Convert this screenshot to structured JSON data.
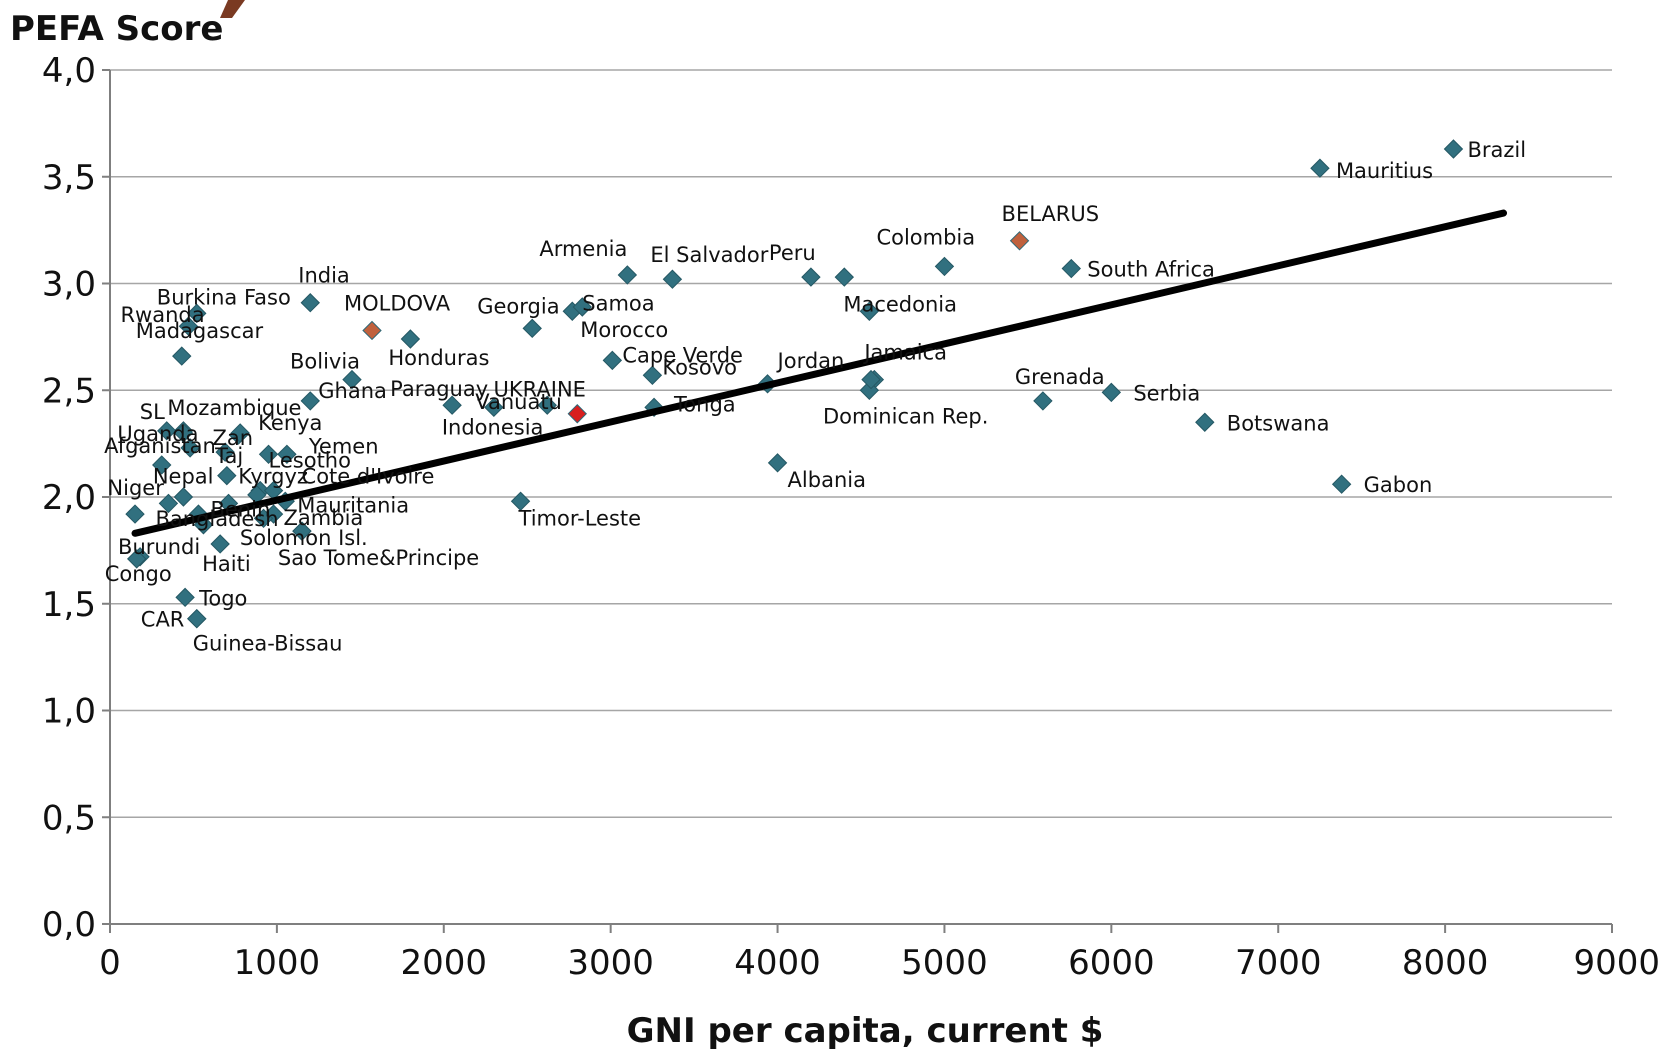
{
  "chart_data": {
    "type": "scatter",
    "ylabel": "PEFA Score",
    "xlabel": "GNI per capita, current $",
    "xlim": [
      0,
      9000
    ],
    "ylim": [
      0,
      4
    ],
    "x_ticks": [
      0,
      1000,
      2000,
      3000,
      4000,
      5000,
      6000,
      7000,
      8000,
      9000
    ],
    "x_tick_labels": [
      "0",
      "1000",
      "2000",
      "3000",
      "4000",
      "5000",
      "6000",
      "7000",
      "8000",
      "9000"
    ],
    "y_ticks": [
      0,
      0.5,
      1,
      1.5,
      2,
      2.5,
      3,
      3.5,
      4
    ],
    "y_tick_labels": [
      "0,0",
      "0,5",
      "1,0",
      "1,5",
      "2,0",
      "2,5",
      "3,0",
      "3,5",
      "4,0"
    ],
    "grid": true,
    "colors": {
      "point": "#31707f",
      "highlight": "#c0613d",
      "ukraine": "#d81f1f",
      "ukraine_label": "#ff0000",
      "trend": "#000000",
      "grid": "#a6a6a6"
    },
    "trendline": {
      "x": [
        150,
        8350
      ],
      "y": [
        1.83,
        3.33
      ]
    },
    "points": [
      {
        "label": "Brazil",
        "x": 8050,
        "y": 3.63,
        "dx": 14,
        "dy": 8
      },
      {
        "label": "Mauritius",
        "x": 7250,
        "y": 3.54,
        "dx": 16,
        "dy": 10
      },
      {
        "label": "BELARUS",
        "x": 5450,
        "y": 3.2,
        "dx": -18,
        "dy": -20,
        "kind": "highlight"
      },
      {
        "label": "Colombia",
        "x": 5000,
        "y": 3.08,
        "dx": -68,
        "dy": -22
      },
      {
        "label": "South Africa",
        "x": 5760,
        "y": 3.07,
        "dx": 16,
        "dy": 8
      },
      {
        "label": "Armenia",
        "x": 3100,
        "y": 3.04,
        "dx": -88,
        "dy": -19
      },
      {
        "label": "El Salvador",
        "x": 3370,
        "y": 3.02,
        "dx": -22,
        "dy": -17
      },
      {
        "label": "Peru",
        "x": 4200,
        "y": 3.03,
        "dx": -42,
        "dy": -17
      },
      {
        "label": "",
        "x": 4400,
        "y": 3.03
      },
      {
        "label": "Macedonia",
        "x": 4550,
        "y": 2.87,
        "dx": -26,
        "dy": 0
      },
      {
        "label": "India",
        "x": 1200,
        "y": 2.91,
        "dx": -12,
        "dy": -20
      },
      {
        "label": "Burkina Faso",
        "x": 520,
        "y": 2.86,
        "dx": -40,
        "dy": -9
      },
      {
        "label": "Rwanda",
        "x": 470,
        "y": 2.8,
        "dx": -68,
        "dy": -4
      },
      {
        "label": "MOLDOVA",
        "x": 1570,
        "y": 2.78,
        "dx": -28,
        "dy": -20,
        "kind": "highlight"
      },
      {
        "label": "Georgia",
        "x": 2530,
        "y": 2.79,
        "dx": -55,
        "dy": -15
      },
      {
        "label": "Samoa",
        "x": 2770,
        "y": 2.87,
        "dx": 10,
        "dy": -1
      },
      {
        "label": "Morocco",
        "x": 2830,
        "y": 2.89,
        "dx": -2,
        "dy": 30
      },
      {
        "label": "Honduras",
        "x": 1800,
        "y": 2.74,
        "dx": -22,
        "dy": 26
      },
      {
        "label": "Madagascar",
        "x": 430,
        "y": 2.66,
        "dx": -46,
        "dy": -18
      },
      {
        "label": "Cape Verde",
        "x": 3010,
        "y": 2.64,
        "dx": 10,
        "dy": 2
      },
      {
        "label": "Kosovo",
        "x": 3250,
        "y": 2.57,
        "dx": 10,
        "dy": -1
      },
      {
        "label": "Jordan",
        "x": 3940,
        "y": 2.53,
        "dx": 10,
        "dy": -16
      },
      {
        "label": "Jamaica",
        "x": 4580,
        "y": 2.55,
        "dx": -10,
        "dy": -20
      },
      {
        "label": "",
        "x": 4550,
        "y": 2.5
      },
      {
        "label": "Bolivia",
        "x": 1450,
        "y": 2.55,
        "dx": -62,
        "dy": -11
      },
      {
        "label": "Ghana",
        "x": 1200,
        "y": 2.45,
        "dx": 8,
        "dy": -3
      },
      {
        "label": "Paraguay",
        "x": 2050,
        "y": 2.43,
        "dx": -62,
        "dy": -9
      },
      {
        "label": "UKRAINE",
        "x": 2250,
        "y": 2.48,
        "dx": 8,
        "dy": 2,
        "kind": "label_red"
      },
      {
        "label": "Vanuatu",
        "x": 2620,
        "y": 2.43,
        "dx": -72,
        "dy": 4
      },
      {
        "label": "",
        "x": 2800,
        "y": 2.39,
        "kind": "ukraine"
      },
      {
        "label": "Tonga",
        "x": 3260,
        "y": 2.42,
        "dx": 20,
        "dy": 4
      },
      {
        "label": "Indonesia",
        "x": 2300,
        "y": 2.42,
        "dx": -52,
        "dy": 27
      },
      {
        "label": "Dominican Rep.",
        "x": 4560,
        "y": 2.55,
        "dx": -48,
        "dy": 44
      },
      {
        "label": "Grenada",
        "x": 5590,
        "y": 2.45,
        "dx": -28,
        "dy": -17
      },
      {
        "label": "Serbia",
        "x": 6000,
        "y": 2.49,
        "dx": 22,
        "dy": 8
      },
      {
        "label": "Botswana",
        "x": 6560,
        "y": 2.35,
        "dx": 22,
        "dy": 8
      },
      {
        "label": "Gabon",
        "x": 7380,
        "y": 2.06,
        "dx": 22,
        "dy": 8
      },
      {
        "label": "Albania",
        "x": 4000,
        "y": 2.16,
        "dx": 10,
        "dy": 24
      },
      {
        "label": "Timor-Leste",
        "x": 2460,
        "y": 1.98,
        "dx": -2,
        "dy": 24
      },
      {
        "label": "Mozambique",
        "x": 440,
        "y": 2.31,
        "dx": -16,
        "dy": -16
      },
      {
        "label": "SL",
        "x": 340,
        "y": 2.31,
        "dx": -27,
        "dy": -12
      },
      {
        "label": "Uganda",
        "x": 440,
        "y": 2.3,
        "dx": -66,
        "dy": 8
      },
      {
        "label": "Zan",
        "x": 770,
        "y": 2.29,
        "dx": -26,
        "dy": 10
      },
      {
        "label": "Kenya",
        "x": 780,
        "y": 2.3,
        "dx": 18,
        "dy": -3
      },
      {
        "label": "Afganistan",
        "x": 480,
        "y": 2.23,
        "dx": -86,
        "dy": 5
      },
      {
        "label": "Yemen",
        "x": 1060,
        "y": 2.2,
        "dx": 22,
        "dy": -1
      },
      {
        "label": "Taj",
        "x": 690,
        "y": 2.21,
        "dx": -10,
        "dy": 11
      },
      {
        "label": "Lesotho",
        "x": 950,
        "y": 2.2,
        "dx": 0,
        "dy": 13
      },
      {
        "label": "",
        "x": 310,
        "y": 2.15
      },
      {
        "label": "Nepal",
        "x": 700,
        "y": 2.1,
        "dx": -74,
        "dy": 8
      },
      {
        "label": "Kyrgyz",
        "x": 900,
        "y": 2.03,
        "dx": -22,
        "dy": -7
      },
      {
        "label": "Cote d'Ivoire",
        "x": 980,
        "y": 2.03,
        "dx": 28,
        "dy": -7
      },
      {
        "label": "",
        "x": 880,
        "y": 2.01
      },
      {
        "label": "Mauritania",
        "x": 1050,
        "y": 1.98,
        "dx": 12,
        "dy": 11
      },
      {
        "label": "Niger",
        "x": 440,
        "y": 2.0,
        "dx": -76,
        "dy": -2
      },
      {
        "label": "",
        "x": 350,
        "y": 1.97
      },
      {
        "label": "Benin",
        "x": 710,
        "y": 1.97,
        "dx": -18,
        "dy": 13
      },
      {
        "label": "",
        "x": 150,
        "y": 1.92
      },
      {
        "label": "",
        "x": 530,
        "y": 1.92
      },
      {
        "label": "Zambia",
        "x": 980,
        "y": 1.92,
        "dx": 10,
        "dy": 11
      },
      {
        "label": "",
        "x": 920,
        "y": 1.9
      },
      {
        "label": "Bangladesh",
        "x": 560,
        "y": 1.87,
        "dx": -48,
        "dy": 1
      },
      {
        "label": "Solomon Isl.",
        "x": 1150,
        "y": 1.84,
        "dx": -62,
        "dy": 14
      },
      {
        "label": "Burundi",
        "x": 180,
        "y": 1.72,
        "dx": -22,
        "dy": -3
      },
      {
        "label": "Haiti",
        "x": 660,
        "y": 1.78,
        "dx": -18,
        "dy": 27
      },
      {
        "label": "Sao Tome&Principe",
        "x": 1150,
        "y": 1.84,
        "dx": -24,
        "dy": 34
      },
      {
        "label": "Congo",
        "x": 160,
        "y": 1.71,
        "dx": -32,
        "dy": 22
      },
      {
        "label": "Togo",
        "x": 450,
        "y": 1.53,
        "dx": 14,
        "dy": 8
      },
      {
        "label": "CAR",
        "x": 520,
        "y": 1.43,
        "dx": -56,
        "dy": 8
      },
      {
        "label": "Guinea-Bissau",
        "x": 520,
        "y": 1.43,
        "dx": -4,
        "dy": 32
      }
    ]
  }
}
